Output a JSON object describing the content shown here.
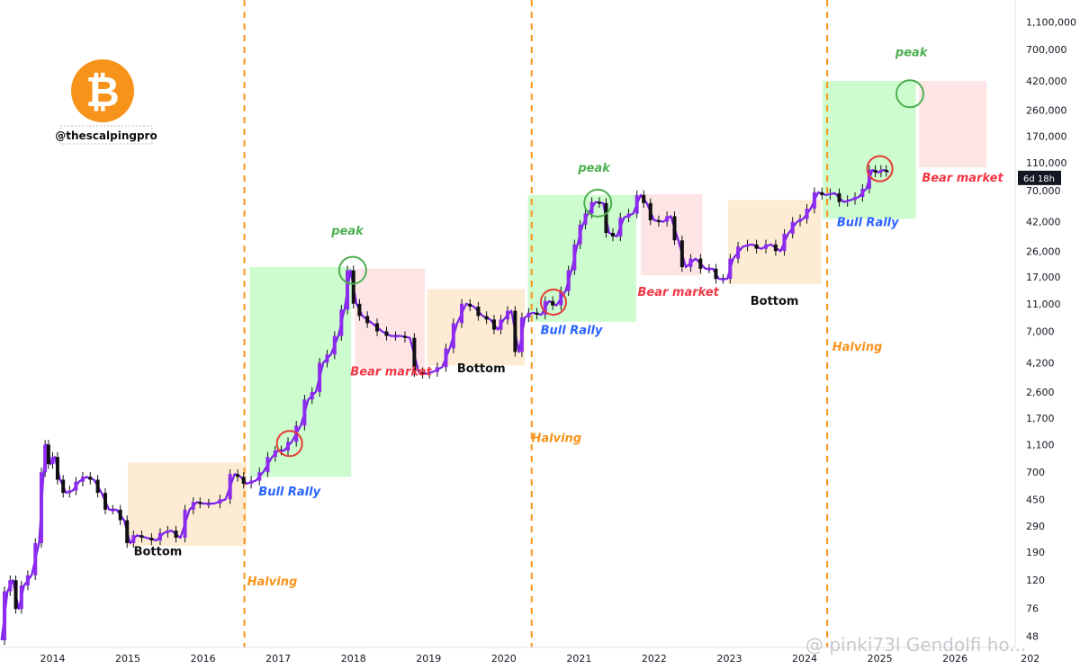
{
  "chart_data": {
    "type": "line",
    "title": "",
    "scale": "log",
    "ylabel": "",
    "xlabel": "",
    "x_ticks": [
      "2014",
      "2015",
      "2016",
      "2017",
      "2018",
      "2019",
      "2020",
      "2021",
      "2022",
      "2023",
      "2024",
      "2025",
      "2026",
      "202"
    ],
    "y_ticks": [
      48,
      76,
      120,
      190,
      290,
      450,
      700,
      1100,
      1700,
      2600,
      4200,
      7000,
      11000,
      17000,
      26000,
      42000,
      70000,
      110000,
      170000,
      260000,
      420000,
      700000,
      1100000
    ],
    "y_tick_labels": [
      "48",
      "76",
      "120",
      "190",
      "290",
      "450",
      "700",
      "1,100",
      "1,700",
      "2,600",
      "4,200",
      "7,000",
      "11,000",
      "17,000",
      "26,000",
      "42,000",
      "70,000",
      "110,000",
      "170,000",
      "260,000",
      "420,000",
      "700,000",
      "1,100,000"
    ],
    "ylim": [
      40,
      1400000
    ],
    "xlim": [
      2013.3,
      2026.8
    ],
    "series": [
      {
        "name": "BTC",
        "color": "#7b22e6",
        "points": [
          [
            2013.32,
            45
          ],
          [
            2013.4,
            100
          ],
          [
            2013.47,
            120
          ],
          [
            2013.55,
            75
          ],
          [
            2013.62,
            110
          ],
          [
            2013.72,
            130
          ],
          [
            2013.82,
            220
          ],
          [
            2013.88,
            700
          ],
          [
            2013.92,
            1100
          ],
          [
            2013.97,
            800
          ],
          [
            2014.03,
            900
          ],
          [
            2014.1,
            620
          ],
          [
            2014.18,
            500
          ],
          [
            2014.27,
            520
          ],
          [
            2014.35,
            600
          ],
          [
            2014.45,
            650
          ],
          [
            2014.55,
            620
          ],
          [
            2014.65,
            500
          ],
          [
            2014.75,
            380
          ],
          [
            2014.85,
            380
          ],
          [
            2014.95,
            320
          ],
          [
            2015.03,
            220
          ],
          [
            2015.12,
            250
          ],
          [
            2015.25,
            240
          ],
          [
            2015.38,
            230
          ],
          [
            2015.48,
            260
          ],
          [
            2015.58,
            270
          ],
          [
            2015.7,
            240
          ],
          [
            2015.82,
            380
          ],
          [
            2015.92,
            430
          ],
          [
            2016.0,
            420
          ],
          [
            2016.15,
            420
          ],
          [
            2016.3,
            450
          ],
          [
            2016.42,
            680
          ],
          [
            2016.5,
            650
          ],
          [
            2016.58,
            580
          ],
          [
            2016.7,
            610
          ],
          [
            2016.8,
            700
          ],
          [
            2016.92,
            900
          ],
          [
            2017.0,
            1000
          ],
          [
            2017.08,
            1000
          ],
          [
            2017.18,
            1150
          ],
          [
            2017.3,
            1500
          ],
          [
            2017.4,
            2300
          ],
          [
            2017.5,
            2600
          ],
          [
            2017.6,
            4200
          ],
          [
            2017.7,
            4800
          ],
          [
            2017.8,
            6500
          ],
          [
            2017.88,
            10000
          ],
          [
            2017.96,
            19000
          ],
          [
            2018.04,
            11000
          ],
          [
            2018.12,
            9000
          ],
          [
            2018.25,
            8000
          ],
          [
            2018.38,
            7000
          ],
          [
            2018.5,
            6500
          ],
          [
            2018.62,
            6500
          ],
          [
            2018.75,
            6300
          ],
          [
            2018.87,
            3600
          ],
          [
            2018.97,
            3500
          ],
          [
            2019.05,
            3600
          ],
          [
            2019.18,
            3900
          ],
          [
            2019.28,
            5300
          ],
          [
            2019.38,
            8000
          ],
          [
            2019.5,
            11000
          ],
          [
            2019.6,
            10500
          ],
          [
            2019.72,
            9000
          ],
          [
            2019.82,
            8500
          ],
          [
            2019.92,
            7200
          ],
          [
            2020.0,
            8500
          ],
          [
            2020.1,
            9800
          ],
          [
            2020.2,
            5000
          ],
          [
            2020.28,
            8800
          ],
          [
            2020.38,
            9500
          ],
          [
            2020.5,
            9200
          ],
          [
            2020.6,
            11500
          ],
          [
            2020.7,
            10700
          ],
          [
            2020.82,
            13500
          ],
          [
            2020.9,
            19000
          ],
          [
            2020.98,
            29000
          ],
          [
            2021.05,
            40000
          ],
          [
            2021.12,
            48000
          ],
          [
            2021.22,
            58000
          ],
          [
            2021.32,
            57000
          ],
          [
            2021.4,
            35000
          ],
          [
            2021.5,
            33000
          ],
          [
            2021.6,
            45000
          ],
          [
            2021.72,
            48000
          ],
          [
            2021.82,
            65000
          ],
          [
            2021.9,
            57000
          ],
          [
            2022.0,
            43000
          ],
          [
            2022.12,
            42000
          ],
          [
            2022.22,
            46000
          ],
          [
            2022.32,
            31000
          ],
          [
            2022.42,
            20000
          ],
          [
            2022.55,
            23000
          ],
          [
            2022.68,
            19500
          ],
          [
            2022.78,
            19500
          ],
          [
            2022.86,
            16500
          ],
          [
            2022.97,
            16500
          ],
          [
            2023.05,
            23000
          ],
          [
            2023.18,
            28000
          ],
          [
            2023.3,
            29000
          ],
          [
            2023.42,
            27000
          ],
          [
            2023.55,
            29000
          ],
          [
            2023.68,
            26000
          ],
          [
            2023.78,
            34500
          ],
          [
            2023.9,
            42000
          ],
          [
            2023.98,
            44000
          ],
          [
            2024.08,
            52000
          ],
          [
            2024.18,
            68000
          ],
          [
            2024.28,
            65000
          ],
          [
            2024.4,
            67000
          ],
          [
            2024.52,
            58000
          ],
          [
            2024.62,
            60000
          ],
          [
            2024.72,
            63000
          ],
          [
            2024.82,
            72000
          ],
          [
            2024.9,
            98000
          ],
          [
            2024.98,
            94000
          ],
          [
            2025.05,
            98000
          ],
          [
            2025.12,
            95000
          ]
        ]
      }
    ],
    "zones": [
      {
        "kind": "bottom",
        "x": [
          2015.0,
          2016.58
        ],
        "y": [
          210,
          820
        ]
      },
      {
        "kind": "bull",
        "x": [
          2016.62,
          2017.97
        ],
        "y": [
          650,
          20000
        ]
      },
      {
        "kind": "bear",
        "x": [
          2018.02,
          2018.95
        ],
        "y": [
          3800,
          19500
        ]
      },
      {
        "kind": "bottom",
        "x": [
          2018.98,
          2020.28
        ],
        "y": [
          4000,
          14000
        ]
      },
      {
        "kind": "bull",
        "x": [
          2020.32,
          2021.76
        ],
        "y": [
          8200,
          65000
        ]
      },
      {
        "kind": "bear",
        "x": [
          2021.82,
          2022.64
        ],
        "y": [
          17500,
          66000
        ]
      },
      {
        "kind": "bottom",
        "x": [
          2022.98,
          2024.22
        ],
        "y": [
          15200,
          60000
        ]
      },
      {
        "kind": "bull",
        "x": [
          2024.24,
          2025.48
        ],
        "y": [
          44000,
          420000
        ]
      },
      {
        "kind": "bear",
        "x": [
          2025.52,
          2026.42
        ],
        "y": [
          102000,
          420000
        ]
      }
    ],
    "halving_lines": [
      2016.55,
      2020.37,
      2024.3
    ],
    "red_circles": [
      [
        2017.15,
        1120
      ],
      [
        2020.66,
        11300
      ],
      [
        2025.0,
        100000
      ]
    ],
    "peak_circles": [
      [
        2017.99,
        19000
      ],
      [
        2021.25,
        57000
      ],
      [
        2025.4,
        340000
      ]
    ],
    "zone_colors": {
      "bull": "#cdfcce",
      "bear": "#fde5e5",
      "bottom": "#fdecd3"
    },
    "label_colors": {
      "halving": "#f7931a",
      "bull": "#2962ff",
      "bear": "#f23645",
      "peak": "#4caf50",
      "bottom": "#111111"
    },
    "annotations": [
      {
        "kind": "bottom",
        "text": "Bottom",
        "x": 2015.4,
        "y": 180
      },
      {
        "kind": "bull",
        "text": "Bull Rally",
        "x": 2017.15,
        "y": 480
      },
      {
        "kind": "halving",
        "text": "Halving",
        "x": 2016.92,
        "y": 110
      },
      {
        "kind": "peak",
        "text": "peak",
        "x": 2017.92,
        "y": 34000
      },
      {
        "kind": "bear",
        "text": "Bear market",
        "x": 2018.5,
        "y": 3400
      },
      {
        "kind": "bottom",
        "text": "Bottom",
        "x": 2019.7,
        "y": 3600
      },
      {
        "kind": "halving",
        "text": "Halving",
        "x": 2020.7,
        "y": 1150
      },
      {
        "kind": "bull",
        "text": "Bull Rally",
        "x": 2020.9,
        "y": 6700
      },
      {
        "kind": "peak",
        "text": "peak",
        "x": 2021.2,
        "y": 95000
      },
      {
        "kind": "bear",
        "text": "Bear market",
        "x": 2022.32,
        "y": 12500
      },
      {
        "kind": "bottom",
        "text": "Bottom",
        "x": 2023.6,
        "y": 10800
      },
      {
        "kind": "halving",
        "text": "Halving",
        "x": 2024.7,
        "y": 5100
      },
      {
        "kind": "bull",
        "text": "Bull Rally",
        "x": 2024.84,
        "y": 39000
      },
      {
        "kind": "peak",
        "text": "peak",
        "x": 2025.42,
        "y": 630000
      },
      {
        "kind": "bear",
        "text": "Bear market",
        "x": 2026.1,
        "y": 81000
      }
    ],
    "price_badge": {
      "text": "6d 18h",
      "value": 86000
    }
  },
  "brand": {
    "handle": "@thescalpingpro",
    "logo_color": "#f7931a",
    "logo_symbol": "₿"
  },
  "watermark": "@ pinki73l Gendolfi ho..."
}
